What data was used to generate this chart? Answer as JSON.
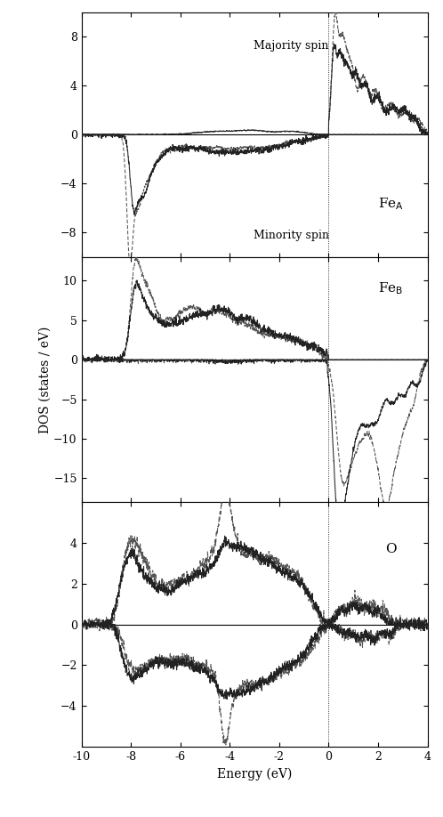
{
  "xlim": [
    -10,
    4
  ],
  "xticks": [
    -10,
    -8,
    -6,
    -4,
    -2,
    0,
    2,
    4
  ],
  "vline_x": 0.0,
  "FeA_ylim": [
    -10,
    10
  ],
  "FeA_yticks": [
    -8,
    -4,
    0,
    4,
    8
  ],
  "FeB_ylim": [
    -18,
    13
  ],
  "FeB_yticks": [
    -15,
    -10,
    -5,
    0,
    5,
    10
  ],
  "O_ylim": [
    -6,
    6
  ],
  "O_yticks": [
    -4,
    -2,
    0,
    2,
    4
  ],
  "solid_color": "#222222",
  "dashed_color": "#555555",
  "linewidth": 0.75,
  "xlabel": "Energy (eV)",
  "ylabel": "DOS (states / eV)",
  "bg_color": "#ffffff",
  "text_majority": "Majority spin",
  "text_minority": "Minority spin"
}
